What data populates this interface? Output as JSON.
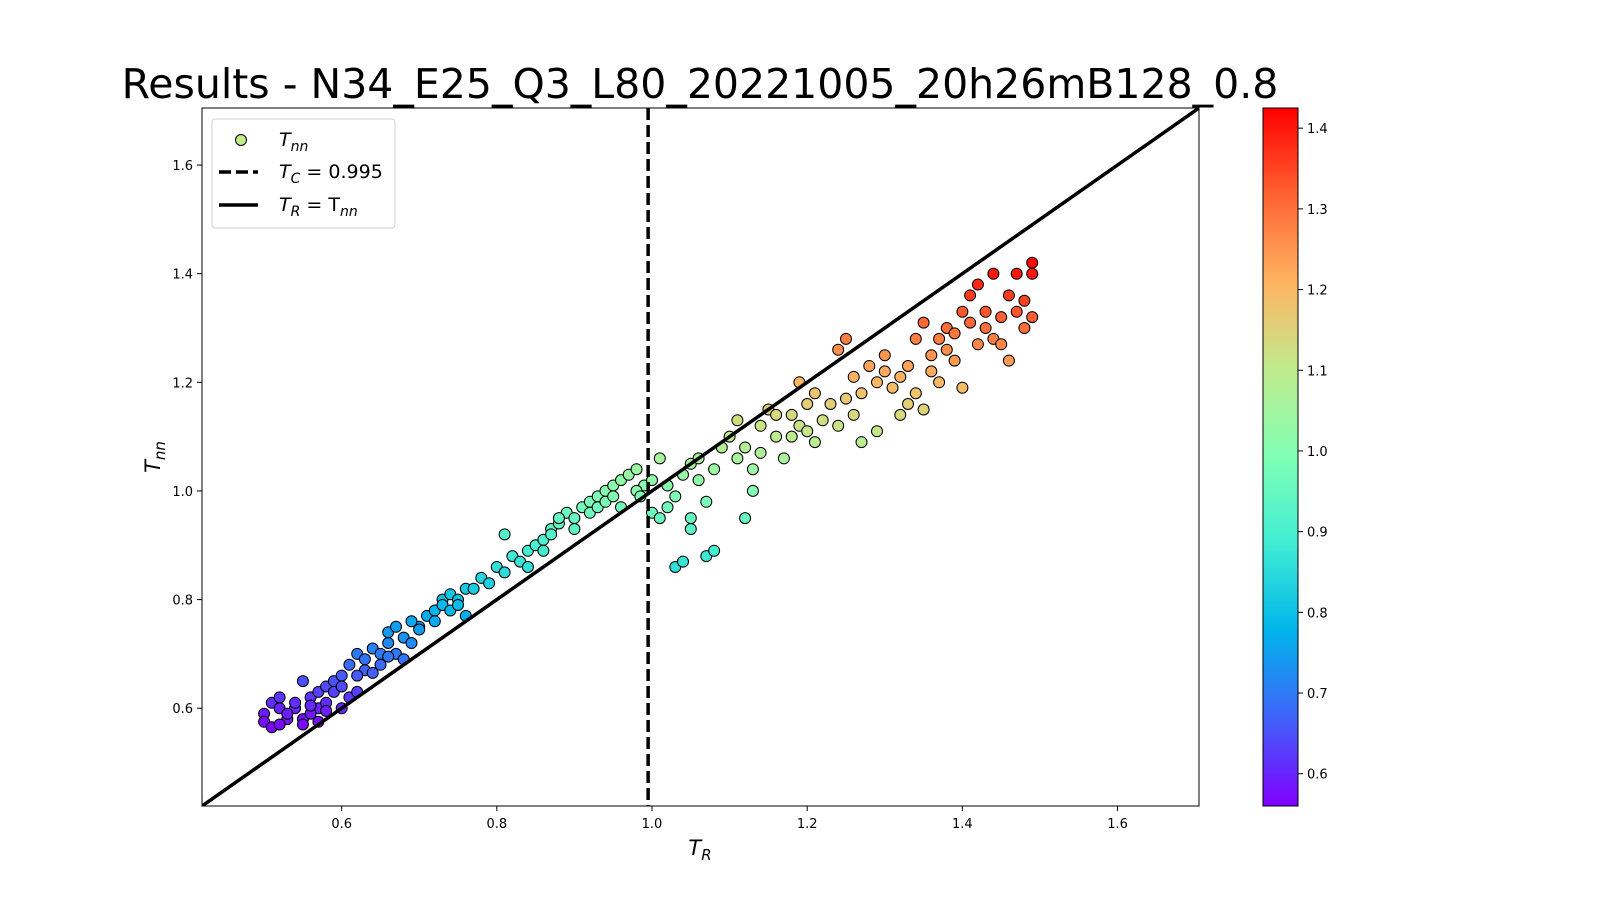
{
  "chart_data": {
    "type": "scatter",
    "title": "Results - N34_E25_Q3_L80_20221005_20h26mB128_0.8",
    "xlabel": {
      "main": "T",
      "sub": "R"
    },
    "ylabel": {
      "main": "T",
      "sub": "nn"
    },
    "xlim": [
      0.42,
      1.705
    ],
    "ylim": [
      0.42,
      1.705
    ],
    "xticks": [
      "0.6",
      "0.8",
      "1.0",
      "1.2",
      "1.4",
      "1.6"
    ],
    "yticks": [
      "0.6",
      "0.8",
      "1.0",
      "1.2",
      "1.4",
      "1.6"
    ],
    "grid": false,
    "legend": {
      "position": "top-left",
      "items": [
        {
          "symbol": "marker",
          "main": "T",
          "sub": "nn",
          "suffix": ""
        },
        {
          "symbol": "dashed-line",
          "main": "T",
          "sub": "C",
          "suffix": " = 0.995"
        },
        {
          "symbol": "solid-line",
          "main": "T",
          "sub": "R",
          "suffix": " = T",
          "suffix_sub": "nn"
        }
      ]
    },
    "reference_lines": {
      "vertical_x": 0.995,
      "identity": true
    },
    "colorbar": {
      "colormap": "rainbow",
      "range": [
        0.56,
        1.425
      ],
      "ticks": [
        "0.6",
        "0.7",
        "0.8",
        "0.9",
        "1.0",
        "1.1",
        "1.2",
        "1.3",
        "1.4"
      ]
    },
    "color_by": "y",
    "points": [
      [
        0.5,
        0.59
      ],
      [
        0.51,
        0.61
      ],
      [
        0.5,
        0.575
      ],
      [
        0.52,
        0.6
      ],
      [
        0.51,
        0.565
      ],
      [
        0.53,
        0.58
      ],
      [
        0.52,
        0.62
      ],
      [
        0.54,
        0.6
      ],
      [
        0.55,
        0.65
      ],
      [
        0.54,
        0.61
      ],
      [
        0.55,
        0.58
      ],
      [
        0.56,
        0.62
      ],
      [
        0.57,
        0.6
      ],
      [
        0.56,
        0.59
      ],
      [
        0.55,
        0.57
      ],
      [
        0.57,
        0.63
      ],
      [
        0.58,
        0.64
      ],
      [
        0.57,
        0.575
      ],
      [
        0.58,
        0.61
      ],
      [
        0.59,
        0.65
      ],
      [
        0.6,
        0.66
      ],
      [
        0.59,
        0.63
      ],
      [
        0.6,
        0.64
      ],
      [
        0.61,
        0.62
      ],
      [
        0.62,
        0.63
      ],
      [
        0.6,
        0.6
      ],
      [
        0.58,
        0.595
      ],
      [
        0.56,
        0.605
      ],
      [
        0.53,
        0.59
      ],
      [
        0.52,
        0.57
      ],
      [
        0.61,
        0.68
      ],
      [
        0.62,
        0.7
      ],
      [
        0.63,
        0.69
      ],
      [
        0.64,
        0.71
      ],
      [
        0.63,
        0.67
      ],
      [
        0.65,
        0.7
      ],
      [
        0.66,
        0.72
      ],
      [
        0.65,
        0.68
      ],
      [
        0.67,
        0.7
      ],
      [
        0.66,
        0.74
      ],
      [
        0.68,
        0.73
      ],
      [
        0.67,
        0.75
      ],
      [
        0.69,
        0.72
      ],
      [
        0.68,
        0.69
      ],
      [
        0.64,
        0.665
      ],
      [
        0.62,
        0.66
      ],
      [
        0.66,
        0.695
      ],
      [
        0.7,
        0.75
      ],
      [
        0.69,
        0.76
      ],
      [
        0.71,
        0.77
      ],
      [
        0.7,
        0.745
      ],
      [
        0.72,
        0.78
      ],
      [
        0.73,
        0.8
      ],
      [
        0.72,
        0.76
      ],
      [
        0.74,
        0.81
      ],
      [
        0.73,
        0.79
      ],
      [
        0.75,
        0.8
      ],
      [
        0.74,
        0.78
      ],
      [
        0.76,
        0.82
      ],
      [
        0.75,
        0.79
      ],
      [
        0.76,
        0.77
      ],
      [
        0.77,
        0.82
      ],
      [
        0.78,
        0.84
      ],
      [
        0.79,
        0.83
      ],
      [
        0.8,
        0.86
      ],
      [
        0.81,
        0.85
      ],
      [
        0.82,
        0.88
      ],
      [
        0.81,
        0.92
      ],
      [
        0.83,
        0.87
      ],
      [
        0.84,
        0.89
      ],
      [
        0.85,
        0.9
      ],
      [
        0.84,
        0.86
      ],
      [
        0.86,
        0.91
      ],
      [
        0.87,
        0.93
      ],
      [
        0.86,
        0.89
      ],
      [
        0.88,
        0.94
      ],
      [
        0.87,
        0.92
      ],
      [
        0.89,
        0.96
      ],
      [
        0.88,
        0.95
      ],
      [
        0.9,
        0.95
      ],
      [
        0.91,
        0.97
      ],
      [
        0.9,
        0.93
      ],
      [
        0.92,
        0.98
      ],
      [
        0.93,
        0.99
      ],
      [
        0.92,
        0.96
      ],
      [
        0.94,
        1.0
      ],
      [
        0.93,
        0.97
      ],
      [
        0.95,
        1.01
      ],
      [
        0.94,
        0.98
      ],
      [
        0.96,
        1.02
      ],
      [
        0.95,
        0.99
      ],
      [
        0.97,
        1.03
      ],
      [
        0.96,
        0.97
      ],
      [
        0.98,
        1.04
      ],
      [
        0.99,
        1.01
      ],
      [
        0.98,
        1.0
      ],
      [
        0.985,
        0.99
      ],
      [
        1.0,
        1.02
      ],
      [
        1.01,
        1.06
      ],
      [
        1.0,
        0.96
      ],
      [
        1.01,
        0.95
      ],
      [
        1.02,
        0.97
      ],
      [
        1.03,
        0.99
      ],
      [
        1.02,
        1.01
      ],
      [
        1.03,
        0.86
      ],
      [
        1.04,
        0.87
      ],
      [
        1.04,
        1.03
      ],
      [
        1.05,
        1.05
      ],
      [
        1.05,
        0.93
      ],
      [
        1.05,
        0.95
      ],
      [
        1.06,
        1.02
      ],
      [
        1.06,
        1.06
      ],
      [
        1.07,
        0.88
      ],
      [
        1.07,
        0.98
      ],
      [
        1.08,
        0.89
      ],
      [
        1.08,
        1.04
      ],
      [
        1.09,
        1.08
      ],
      [
        1.1,
        1.1
      ],
      [
        1.11,
        1.13
      ],
      [
        1.11,
        1.06
      ],
      [
        1.12,
        0.95
      ],
      [
        1.12,
        1.08
      ],
      [
        1.13,
        1.04
      ],
      [
        1.13,
        1.0
      ],
      [
        1.14,
        1.12
      ],
      [
        1.14,
        1.07
      ],
      [
        1.15,
        1.15
      ],
      [
        1.16,
        1.1
      ],
      [
        1.16,
        1.14
      ],
      [
        1.17,
        1.06
      ],
      [
        1.18,
        1.1
      ],
      [
        1.18,
        1.14
      ],
      [
        1.19,
        1.12
      ],
      [
        1.19,
        1.2
      ],
      [
        1.2,
        1.16
      ],
      [
        1.2,
        1.11
      ],
      [
        1.21,
        1.18
      ],
      [
        1.21,
        1.09
      ],
      [
        1.22,
        1.13
      ],
      [
        1.23,
        1.16
      ],
      [
        1.24,
        1.12
      ],
      [
        1.24,
        1.26
      ],
      [
        1.25,
        1.17
      ],
      [
        1.25,
        1.28
      ],
      [
        1.26,
        1.14
      ],
      [
        1.26,
        1.21
      ],
      [
        1.27,
        1.09
      ],
      [
        1.27,
        1.18
      ],
      [
        1.28,
        1.23
      ],
      [
        1.29,
        1.2
      ],
      [
        1.29,
        1.11
      ],
      [
        1.3,
        1.25
      ],
      [
        1.3,
        1.22
      ],
      [
        1.31,
        1.19
      ],
      [
        1.32,
        1.14
      ],
      [
        1.32,
        1.21
      ],
      [
        1.33,
        1.23
      ],
      [
        1.33,
        1.16
      ],
      [
        1.34,
        1.28
      ],
      [
        1.34,
        1.18
      ],
      [
        1.35,
        1.31
      ],
      [
        1.35,
        1.15
      ],
      [
        1.36,
        1.25
      ],
      [
        1.36,
        1.22
      ],
      [
        1.37,
        1.28
      ],
      [
        1.37,
        1.2
      ],
      [
        1.38,
        1.26
      ],
      [
        1.38,
        1.3
      ],
      [
        1.39,
        1.24
      ],
      [
        1.39,
        1.29
      ],
      [
        1.4,
        1.33
      ],
      [
        1.4,
        1.19
      ],
      [
        1.41,
        1.31
      ],
      [
        1.41,
        1.36
      ],
      [
        1.42,
        1.27
      ],
      [
        1.42,
        1.38
      ],
      [
        1.43,
        1.3
      ],
      [
        1.43,
        1.33
      ],
      [
        1.44,
        1.4
      ],
      [
        1.44,
        1.28
      ],
      [
        1.45,
        1.32
      ],
      [
        1.45,
        1.27
      ],
      [
        1.46,
        1.36
      ],
      [
        1.46,
        1.24
      ],
      [
        1.47,
        1.4
      ],
      [
        1.47,
        1.33
      ],
      [
        1.48,
        1.3
      ],
      [
        1.48,
        1.35
      ],
      [
        1.49,
        1.42
      ],
      [
        1.49,
        1.32
      ],
      [
        1.49,
        1.4
      ]
    ]
  }
}
